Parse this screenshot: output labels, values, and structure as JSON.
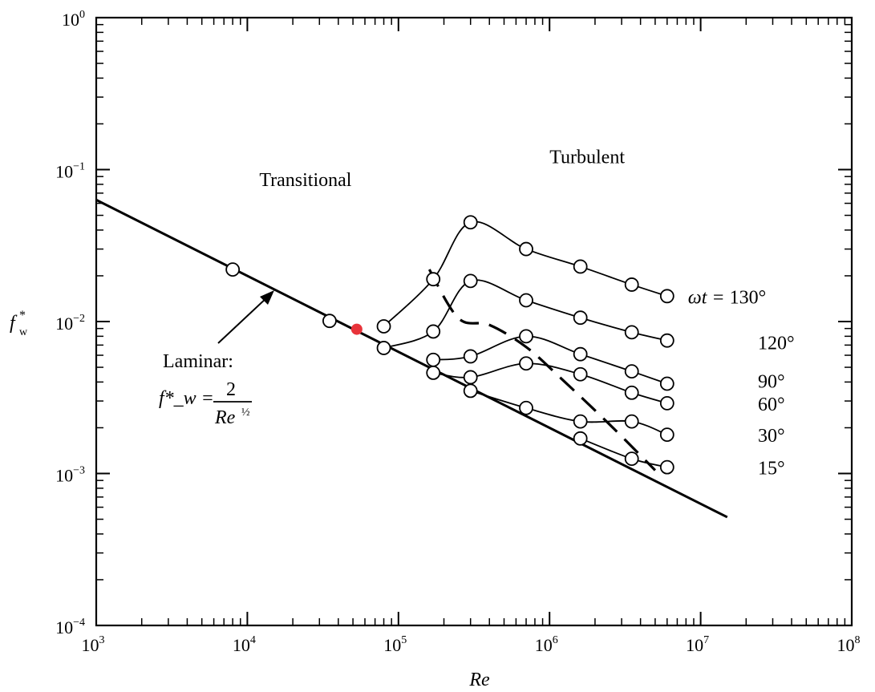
{
  "chart_data": {
    "type": "line",
    "title": "",
    "xlabel": "Re",
    "ylabel": "f*_w",
    "x_scale": "log",
    "y_scale": "log",
    "xlim": [
      1000,
      100000000
    ],
    "ylim": [
      0.0001,
      1
    ],
    "x_ticks": [
      {
        "value": 1000,
        "base": "10",
        "exp": "3"
      },
      {
        "value": 10000,
        "base": "10",
        "exp": "4"
      },
      {
        "value": 100000,
        "base": "10",
        "exp": "5"
      },
      {
        "value": 1000000,
        "base": "10",
        "exp": "6"
      },
      {
        "value": 10000000,
        "base": "10",
        "exp": "7"
      },
      {
        "value": 100000000,
        "base": "10",
        "exp": "8"
      }
    ],
    "y_ticks": [
      {
        "value": 0.0001,
        "base": "10",
        "exp": "−4"
      },
      {
        "value": 0.001,
        "base": "10",
        "exp": "−3"
      },
      {
        "value": 0.01,
        "base": "10",
        "exp": "−2"
      },
      {
        "value": 0.1,
        "base": "10",
        "exp": "−1"
      },
      {
        "value": 1,
        "base": "10",
        "exp": "0"
      }
    ],
    "grid": false,
    "laminar_line": {
      "x": [
        1000,
        15000000
      ],
      "y": [
        0.0632,
        0.000516
      ],
      "label_title": "Laminar:",
      "label_lhs": "f*_w =",
      "label_numerator": "2",
      "label_denominator": "Re",
      "label_denominator_exp": "½"
    },
    "transition_line": {
      "style": "dashed",
      "x": [
        160000,
        250000,
        400000,
        700000,
        1200000,
        2500000,
        5000000
      ],
      "y": [
        0.022,
        0.0105,
        0.0095,
        0.0068,
        0.0042,
        0.0021,
        0.00105
      ]
    },
    "laminar_points": {
      "x": [
        8000,
        35000
      ],
      "y": [
        0.022,
        0.0101
      ]
    },
    "highlight_point": {
      "x": 53000,
      "y": 0.0089,
      "color": "#e8333a"
    },
    "series": [
      {
        "name": "ωt = 130°",
        "label_lhs": "ωt = ",
        "label_value": "130°",
        "x": [
          80000,
          170000,
          300000,
          700000,
          1600000,
          3500000,
          6000000
        ],
        "y": [
          0.0093,
          0.019,
          0.045,
          0.03,
          0.023,
          0.0175,
          0.0147
        ]
      },
      {
        "name": "120°",
        "label_value": "120°",
        "x": [
          80000,
          170000,
          300000,
          700000,
          1600000,
          3500000,
          6000000
        ],
        "y": [
          0.0067,
          0.0086,
          0.0185,
          0.0138,
          0.0106,
          0.0085,
          0.0075
        ]
      },
      {
        "name": "90°",
        "label_value": "90°",
        "x": [
          170000,
          300000,
          700000,
          1600000,
          3500000,
          6000000
        ],
        "y": [
          0.0056,
          0.0059,
          0.008,
          0.0061,
          0.0047,
          0.0039
        ]
      },
      {
        "name": "60°",
        "label_value": "60°",
        "x": [
          170000,
          300000,
          700000,
          1600000,
          3500000,
          6000000
        ],
        "y": [
          0.0046,
          0.0043,
          0.0053,
          0.0045,
          0.0034,
          0.0029
        ]
      },
      {
        "name": "30°",
        "label_value": "30°",
        "x": [
          300000,
          700000,
          1600000,
          3500000,
          6000000
        ],
        "y": [
          0.0035,
          0.0027,
          0.0022,
          0.0022,
          0.0018
        ]
      },
      {
        "name": "15°",
        "label_value": "15°",
        "x": [
          1600000,
          3500000,
          6000000
        ],
        "y": [
          0.0017,
          0.00125,
          0.0011
        ]
      }
    ],
    "annotations": [
      {
        "text": "Transitional",
        "x": 12000,
        "y": 0.078
      },
      {
        "text": "Turbulent",
        "x": 1000000,
        "y": 0.11
      }
    ]
  }
}
